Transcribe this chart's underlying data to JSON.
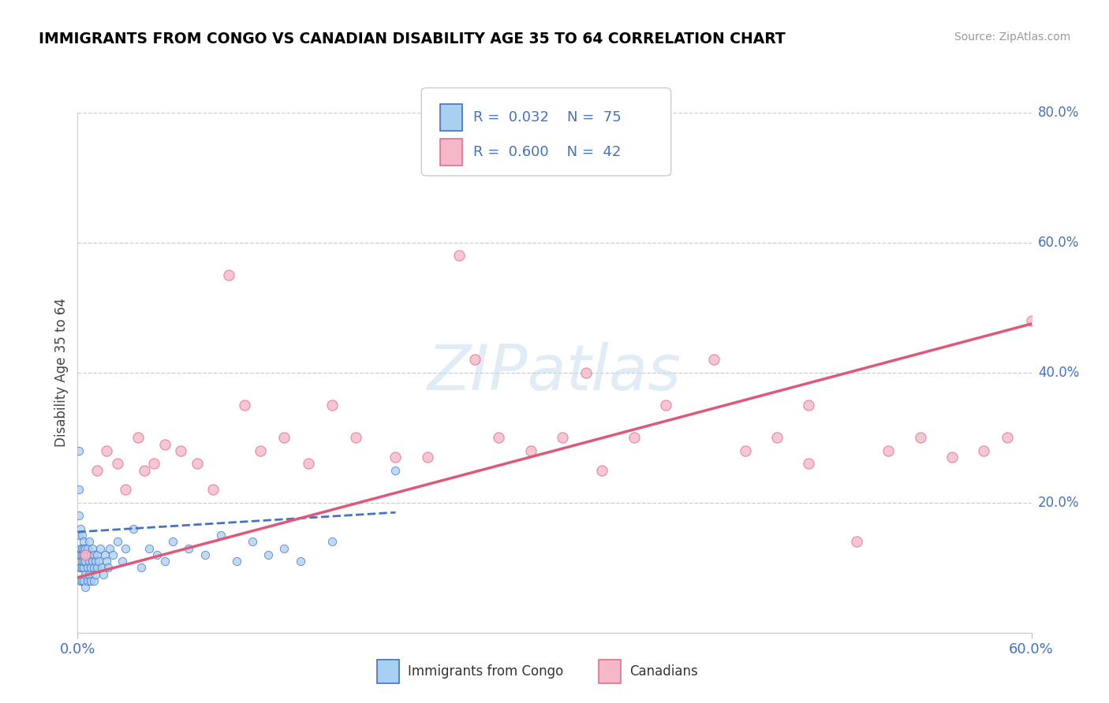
{
  "title": "IMMIGRANTS FROM CONGO VS CANADIAN DISABILITY AGE 35 TO 64 CORRELATION CHART",
  "source": "Source: ZipAtlas.com",
  "ylabel": "Disability Age 35 to 64",
  "right_yticks": [
    0.8,
    0.6,
    0.4,
    0.2
  ],
  "right_ylabels": [
    "80.0%",
    "60.0%",
    "40.0%",
    "20.0%"
  ],
  "blue_fill": "#a8d0f0",
  "blue_edge": "#4472c4",
  "pink_fill": "#f5b8c8",
  "pink_edge": "#e07090",
  "trend_blue_color": "#4472c4",
  "trend_pink_color": "#e05878",
  "watermark": "ZIPatlas",
  "xlim": [
    0.0,
    0.6
  ],
  "ylim": [
    0.0,
    0.8
  ],
  "congo_x": [
    0.0005,
    0.001,
    0.001,
    0.001,
    0.001,
    0.0015,
    0.002,
    0.002,
    0.002,
    0.002,
    0.002,
    0.003,
    0.003,
    0.003,
    0.003,
    0.003,
    0.003,
    0.004,
    0.004,
    0.004,
    0.004,
    0.004,
    0.004,
    0.005,
    0.005,
    0.005,
    0.005,
    0.005,
    0.006,
    0.006,
    0.006,
    0.006,
    0.007,
    0.007,
    0.007,
    0.008,
    0.008,
    0.008,
    0.009,
    0.009,
    0.01,
    0.01,
    0.01,
    0.011,
    0.011,
    0.012,
    0.012,
    0.013,
    0.014,
    0.015,
    0.016,
    0.017,
    0.018,
    0.019,
    0.02,
    0.022,
    0.025,
    0.028,
    0.03,
    0.035,
    0.04,
    0.045,
    0.05,
    0.055,
    0.06,
    0.07,
    0.08,
    0.09,
    0.1,
    0.11,
    0.12,
    0.13,
    0.14,
    0.16,
    0.2
  ],
  "congo_y": [
    0.12,
    0.28,
    0.22,
    0.18,
    0.15,
    0.1,
    0.16,
    0.12,
    0.1,
    0.08,
    0.13,
    0.15,
    0.12,
    0.1,
    0.08,
    0.13,
    0.11,
    0.14,
    0.12,
    0.1,
    0.08,
    0.11,
    0.13,
    0.13,
    0.11,
    0.09,
    0.07,
    0.12,
    0.12,
    0.1,
    0.08,
    0.13,
    0.11,
    0.09,
    0.14,
    0.12,
    0.1,
    0.08,
    0.11,
    0.13,
    0.12,
    0.1,
    0.08,
    0.11,
    0.09,
    0.1,
    0.12,
    0.11,
    0.13,
    0.1,
    0.09,
    0.12,
    0.11,
    0.1,
    0.13,
    0.12,
    0.14,
    0.11,
    0.13,
    0.16,
    0.1,
    0.13,
    0.12,
    0.11,
    0.14,
    0.13,
    0.12,
    0.15,
    0.11,
    0.14,
    0.12,
    0.13,
    0.11,
    0.14,
    0.25
  ],
  "canadian_x": [
    0.005,
    0.012,
    0.018,
    0.025,
    0.03,
    0.038,
    0.042,
    0.048,
    0.055,
    0.065,
    0.075,
    0.085,
    0.095,
    0.105,
    0.115,
    0.13,
    0.145,
    0.16,
    0.175,
    0.2,
    0.22,
    0.24,
    0.265,
    0.285,
    0.305,
    0.33,
    0.35,
    0.37,
    0.4,
    0.42,
    0.44,
    0.46,
    0.49,
    0.51,
    0.53,
    0.55,
    0.57,
    0.585,
    0.6,
    0.25,
    0.32,
    0.46
  ],
  "canadian_y": [
    0.12,
    0.25,
    0.28,
    0.26,
    0.22,
    0.3,
    0.25,
    0.26,
    0.29,
    0.28,
    0.26,
    0.22,
    0.55,
    0.35,
    0.28,
    0.3,
    0.26,
    0.35,
    0.3,
    0.27,
    0.27,
    0.58,
    0.3,
    0.28,
    0.3,
    0.25,
    0.3,
    0.35,
    0.42,
    0.28,
    0.3,
    0.35,
    0.14,
    0.28,
    0.3,
    0.27,
    0.28,
    0.3,
    0.48,
    0.42,
    0.4,
    0.26
  ],
  "blue_trend_x": [
    0.0,
    0.2
  ],
  "blue_trend_y": [
    0.155,
    0.185
  ],
  "pink_trend_x": [
    0.0,
    0.6
  ],
  "pink_trend_y": [
    0.085,
    0.475
  ]
}
